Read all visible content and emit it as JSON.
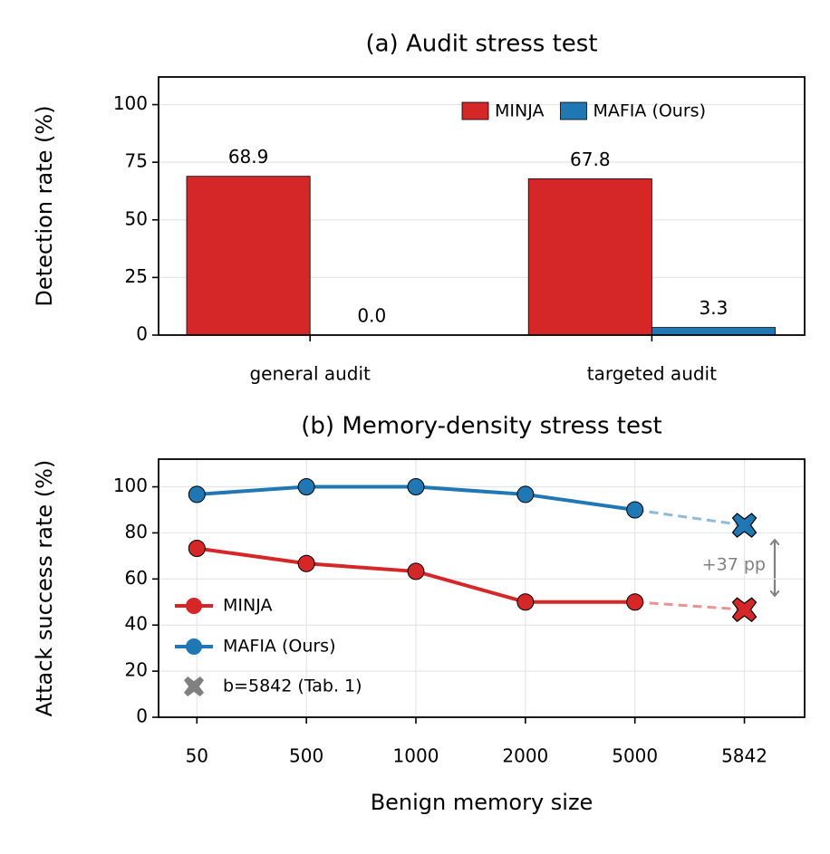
{
  "chart_data": [
    {
      "type": "bar",
      "title": "(a) Audit stress test",
      "ylabel": "Detection rate (%)",
      "categories": [
        "general audit",
        "targeted audit"
      ],
      "series": [
        {
          "name": "MINJA",
          "color": "#d62728",
          "values": [
            68.9,
            67.8
          ],
          "value_labels": [
            "68.9",
            "67.8"
          ]
        },
        {
          "name": "MAFIA (Ours)",
          "color": "#1f77b4",
          "values": [
            0.0,
            3.3
          ],
          "value_labels": [
            "0.0",
            "3.3"
          ]
        }
      ],
      "ylim": [
        0,
        112
      ],
      "yticks": [
        0,
        25,
        50,
        75,
        100
      ],
      "grid": true,
      "legend": "upper right"
    },
    {
      "type": "line",
      "title": "(b) Memory-density stress test",
      "xlabel": "Benign memory size",
      "ylabel": "Attack success rate (%)",
      "categories": [
        "50",
        "500",
        "1000",
        "2000",
        "5000",
        "5842"
      ],
      "series": [
        {
          "name": "MINJA",
          "color": "#d62728",
          "values": [
            73.3,
            66.7,
            63.3,
            50,
            50,
            46.7
          ]
        },
        {
          "name": "MAFIA (Ours)",
          "color": "#1f77b4",
          "values": [
            96.7,
            100,
            100,
            96.7,
            90,
            83.3
          ]
        }
      ],
      "highlight": {
        "name": "b=5842 (Tab. 1)",
        "color": "#808080"
      },
      "annotation": "+37 pp",
      "ylim": [
        0,
        112
      ],
      "yticks": [
        0,
        20,
        40,
        60,
        80,
        100
      ],
      "grid": true,
      "legend": "lower left"
    }
  ]
}
